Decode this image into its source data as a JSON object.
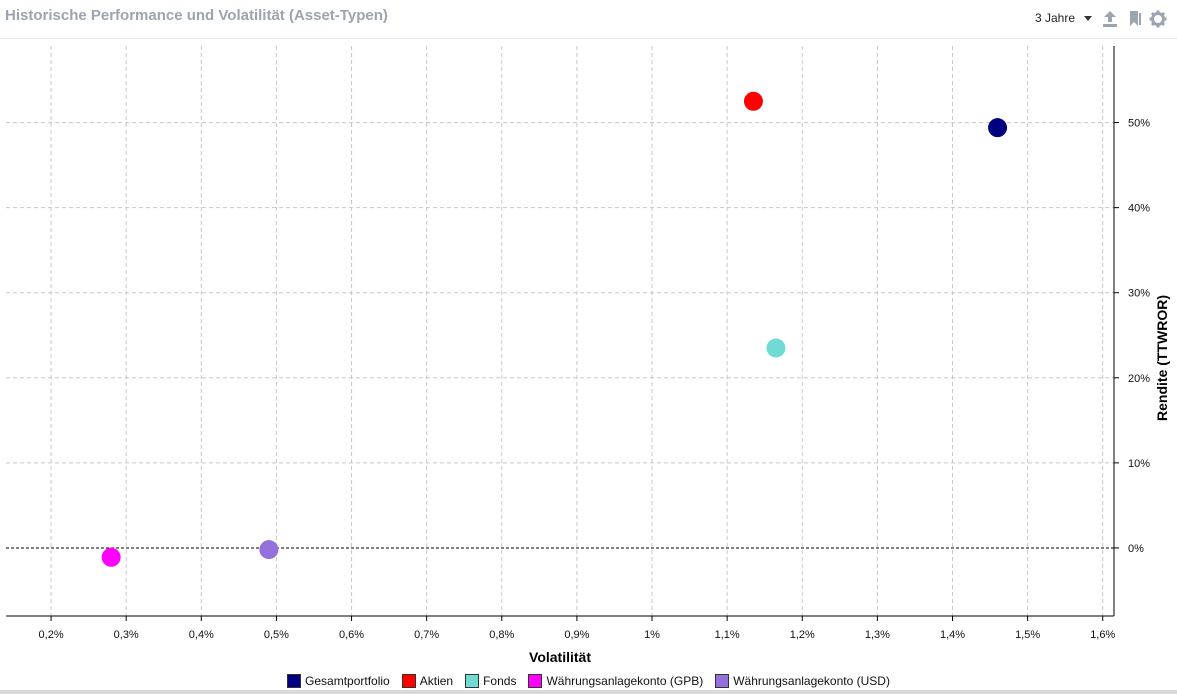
{
  "header": {
    "title": "Historische Performance und Volatilität (Asset-Typen)",
    "period_label": "3 Jahre",
    "icons": [
      "export-icon",
      "bookmark-icon",
      "gear-icon"
    ]
  },
  "chart_data": {
    "type": "scatter",
    "xlabel": "Volatilität",
    "ylabel": "Rendite (TTWROR)",
    "xlim": [
      0.14,
      1.615
    ],
    "ylim": [
      -8,
      59
    ],
    "x_ticks": [
      0.2,
      0.3,
      0.4,
      0.5,
      0.6,
      0.7,
      0.8,
      0.9,
      1.0,
      1.1,
      1.2,
      1.3,
      1.4,
      1.5,
      1.6
    ],
    "x_tick_labels": [
      "0,2%",
      "0,3%",
      "0,4%",
      "0,5%",
      "0,6%",
      "0,7%",
      "0,8%",
      "0,9%",
      "1%",
      "1,1%",
      "1,2%",
      "1,3%",
      "1,4%",
      "1,5%",
      "1,6%"
    ],
    "y_ticks": [
      0,
      10,
      20,
      30,
      40,
      50
    ],
    "y_tick_labels": [
      "0%",
      "10%",
      "20%",
      "30%",
      "40%",
      "50%"
    ],
    "grid": true,
    "y_axis_position": "right",
    "legend_position": "bottom",
    "series": [
      {
        "name": "Gesamtportfolio",
        "color": "#000080",
        "x": 1.46,
        "y": 49.4
      },
      {
        "name": "Aktien",
        "color": "#ff0000",
        "x": 1.135,
        "y": 52.5
      },
      {
        "name": "Fonds",
        "color": "#70dbd5",
        "x": 1.165,
        "y": 23.5
      },
      {
        "name": "Währungsanlagekonto (GPB)",
        "color": "#ff00ff",
        "x": 0.28,
        "y": -1.1
      },
      {
        "name": "Währungsanlagekonto (USD)",
        "color": "#9370db",
        "x": 0.49,
        "y": -0.2
      }
    ]
  }
}
